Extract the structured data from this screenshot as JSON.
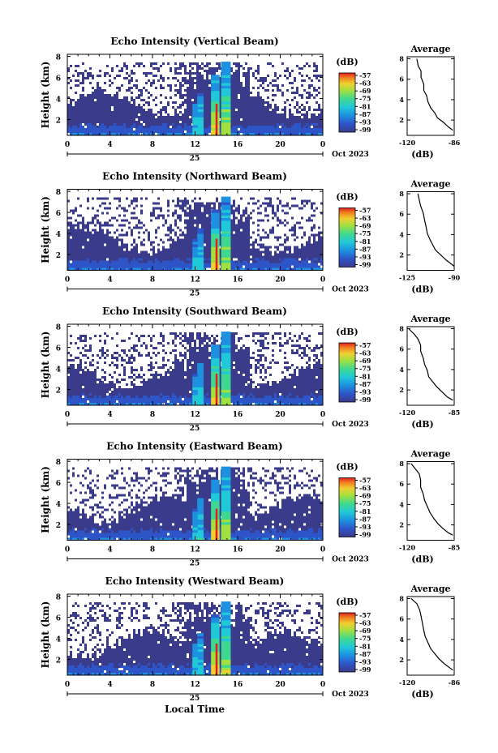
{
  "figure": {
    "xlabel": "Local Time",
    "date_label": "Oct 2023",
    "day_label": "25",
    "avg_title": "Average",
    "avg_unit": "(dB)",
    "cbar_unit": "(dB)",
    "ylabel": "Height (km)"
  },
  "chart_data": [
    {
      "type": "heatmap",
      "title": "Echo Intensity (Vertical Beam)",
      "x_ticks": [
        "0",
        "4",
        "8",
        "12",
        "16",
        "20",
        "0"
      ],
      "y_ticks": [
        "8",
        "6",
        "4",
        "2"
      ],
      "xlim": [
        0,
        24
      ],
      "ylim": [
        0.5,
        8.2
      ],
      "colorbar_ticks": [
        "-57",
        "-63",
        "-69",
        "-75",
        "-81",
        "-87",
        "-93",
        "-99"
      ],
      "colors": [
        "#3b3b8c",
        "#2d55c8",
        "#1e90e0",
        "#20c8d8",
        "#40d890",
        "#a0e040",
        "#f0d030",
        "#f08020",
        "#e02020"
      ],
      "average_profile": {
        "xlim": [
          -120,
          -86
        ],
        "x_ticks": [
          "-120",
          "-86"
        ],
        "y_ticks": [
          "8",
          "6",
          "4",
          "2"
        ],
        "points": [
          [
            -113,
            8
          ],
          [
            -112,
            7.3
          ],
          [
            -110,
            6.8
          ],
          [
            -110,
            6.2
          ],
          [
            -108,
            5.5
          ],
          [
            -108,
            4.9
          ],
          [
            -106,
            4.4
          ],
          [
            -105,
            3.8
          ],
          [
            -103,
            3.2
          ],
          [
            -100,
            2.7
          ],
          [
            -98,
            2.2
          ],
          [
            -94,
            1.8
          ],
          [
            -90,
            1.3
          ],
          [
            -87,
            1.0
          ]
        ]
      }
    },
    {
      "type": "heatmap",
      "title": "Echo Intensity (Northward Beam)",
      "x_ticks": [
        "0",
        "4",
        "8",
        "12",
        "16",
        "20",
        "0"
      ],
      "y_ticks": [
        "8",
        "6",
        "4",
        "2"
      ],
      "xlim": [
        0,
        24
      ],
      "ylim": [
        0.5,
        8.2
      ],
      "colorbar_ticks": [
        "-57",
        "-63",
        "-69",
        "-75",
        "-81",
        "-87",
        "-93",
        "-99"
      ],
      "average_profile": {
        "xlim": [
          -125,
          -90
        ],
        "x_ticks": [
          "-125",
          "-90"
        ],
        "y_ticks": [
          "8",
          "6",
          "4",
          "2"
        ],
        "points": [
          [
            -117,
            8
          ],
          [
            -116,
            7.4
          ],
          [
            -115,
            6.8
          ],
          [
            -113,
            6.1
          ],
          [
            -112,
            5.4
          ],
          [
            -111,
            4.8
          ],
          [
            -110,
            4.1
          ],
          [
            -108,
            3.5
          ],
          [
            -106,
            3.0
          ],
          [
            -104,
            2.5
          ],
          [
            -100,
            2.0
          ],
          [
            -96,
            1.5
          ],
          [
            -92,
            1.1
          ],
          [
            -90,
            0.9
          ]
        ]
      }
    },
    {
      "type": "heatmap",
      "title": "Echo Intensity (Southward Beam)",
      "x_ticks": [
        "0",
        "4",
        "8",
        "12",
        "16",
        "20",
        "0"
      ],
      "y_ticks": [
        "8",
        "6",
        "4",
        "2"
      ],
      "xlim": [
        0,
        24
      ],
      "ylim": [
        0.5,
        8.2
      ],
      "colorbar_ticks": [
        "-57",
        "-63",
        "-69",
        "-75",
        "-81",
        "-87",
        "-93",
        "-99"
      ],
      "average_profile": {
        "xlim": [
          -120,
          -85
        ],
        "x_ticks": [
          "-120",
          "-85"
        ],
        "y_ticks": [
          "8",
          "6",
          "4",
          "2"
        ],
        "points": [
          [
            -119,
            8
          ],
          [
            -115,
            7.5
          ],
          [
            -112,
            7.0
          ],
          [
            -110,
            6.4
          ],
          [
            -110,
            5.8
          ],
          [
            -108,
            5.1
          ],
          [
            -107,
            4.5
          ],
          [
            -105,
            3.9
          ],
          [
            -104,
            3.3
          ],
          [
            -101,
            2.8
          ],
          [
            -98,
            2.3
          ],
          [
            -94,
            1.8
          ],
          [
            -90,
            1.3
          ],
          [
            -86,
            1.0
          ]
        ]
      }
    },
    {
      "type": "heatmap",
      "title": "Echo Intensity (Eastward Beam)",
      "x_ticks": [
        "0",
        "4",
        "8",
        "12",
        "16",
        "20",
        "0"
      ],
      "y_ticks": [
        "8",
        "6",
        "4",
        "2"
      ],
      "xlim": [
        0,
        24
      ],
      "ylim": [
        0.5,
        8.2
      ],
      "colorbar_ticks": [
        "-57",
        "-63",
        "-69",
        "-75",
        "-81",
        "-87",
        "-93",
        "-99"
      ],
      "average_profile": {
        "xlim": [
          -120,
          -85
        ],
        "x_ticks": [
          "-120",
          "-85"
        ],
        "y_ticks": [
          "8",
          "6",
          "4",
          "2"
        ],
        "points": [
          [
            -117,
            8
          ],
          [
            -114,
            7.5
          ],
          [
            -111,
            7.0
          ],
          [
            -110,
            6.4
          ],
          [
            -110,
            5.7
          ],
          [
            -108,
            5.0
          ],
          [
            -107,
            4.4
          ],
          [
            -105,
            3.8
          ],
          [
            -103,
            3.2
          ],
          [
            -100,
            2.6
          ],
          [
            -97,
            2.1
          ],
          [
            -93,
            1.6
          ],
          [
            -89,
            1.2
          ],
          [
            -86,
            1.0
          ]
        ]
      }
    },
    {
      "type": "heatmap",
      "title": "Echo Intensity (Westward Beam)",
      "x_ticks": [
        "0",
        "4",
        "8",
        "12",
        "16",
        "20",
        "0"
      ],
      "y_ticks": [
        "8",
        "6",
        "4",
        "2"
      ],
      "xlim": [
        0,
        24
      ],
      "ylim": [
        0.5,
        8.2
      ],
      "colorbar_ticks": [
        "-57",
        "-63",
        "-69",
        "-75",
        "-81",
        "-87",
        "-93",
        "-99"
      ],
      "average_profile": {
        "xlim": [
          -120,
          -86
        ],
        "x_ticks": [
          "-120",
          "-86"
        ],
        "y_ticks": [
          "8",
          "6",
          "4",
          "2"
        ],
        "points": [
          [
            -117,
            8
          ],
          [
            -113,
            7.5
          ],
          [
            -111,
            6.9
          ],
          [
            -110,
            6.3
          ],
          [
            -109,
            5.6
          ],
          [
            -108,
            4.9
          ],
          [
            -107,
            4.3
          ],
          [
            -105,
            3.7
          ],
          [
            -103,
            3.1
          ],
          [
            -100,
            2.6
          ],
          [
            -97,
            2.1
          ],
          [
            -93,
            1.6
          ],
          [
            -89,
            1.2
          ],
          [
            -87,
            1.0
          ]
        ]
      }
    }
  ]
}
